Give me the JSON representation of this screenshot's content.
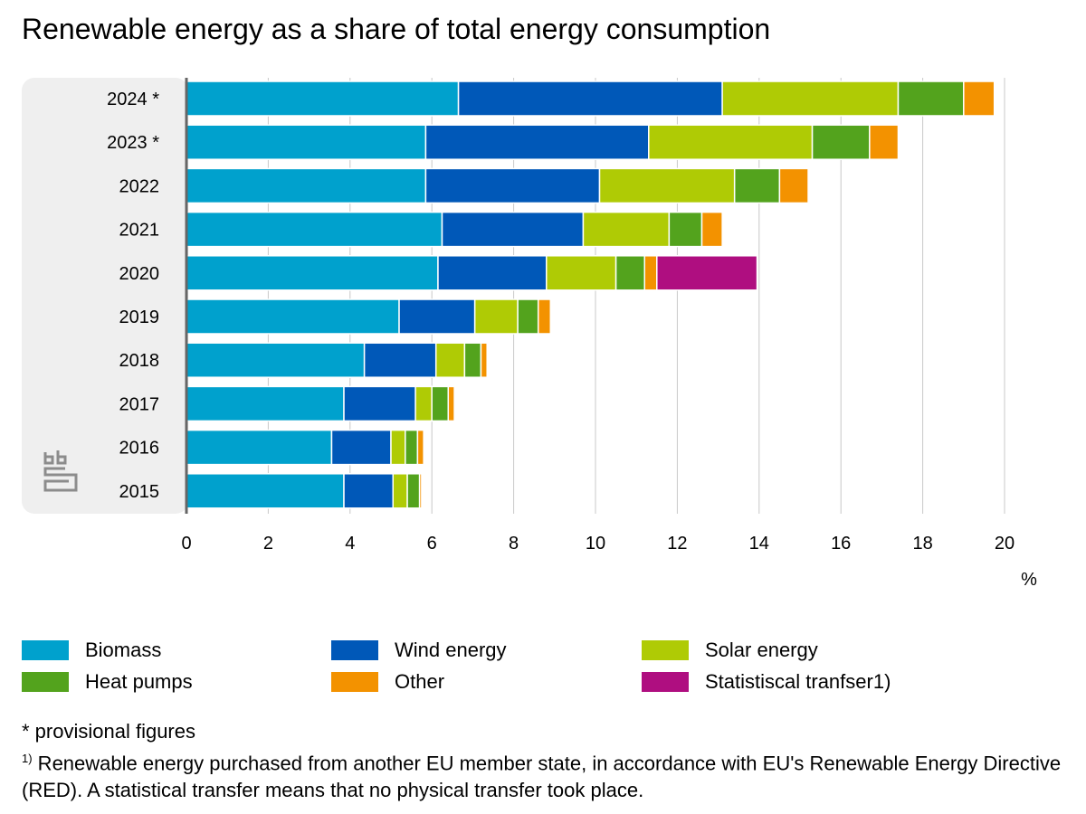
{
  "chart_data": {
    "type": "bar",
    "orientation": "horizontal",
    "stacked": true,
    "title": "Renewable energy as a share of total energy consumption",
    "xlabel": "%",
    "xlim": [
      0,
      20
    ],
    "xticks": [
      "0",
      "2",
      "4",
      "6",
      "8",
      "10",
      "12",
      "14",
      "16",
      "18",
      "20"
    ],
    "grid": true,
    "legend_position": "bottom",
    "categories": [
      "2024 *",
      "2023 *",
      "2022",
      "2021",
      "2020",
      "2019",
      "2018",
      "2017",
      "2016",
      "2015"
    ],
    "series": [
      {
        "name": "Biomass",
        "color": "#00a1cd",
        "values": [
          6.65,
          5.85,
          5.85,
          6.25,
          6.15,
          5.2,
          4.35,
          3.85,
          3.55,
          3.85
        ]
      },
      {
        "name": "Wind energy",
        "color": "#0058b8",
        "values": [
          6.45,
          5.45,
          4.25,
          3.45,
          2.65,
          1.85,
          1.75,
          1.75,
          1.45,
          1.2
        ]
      },
      {
        "name": "Solar energy",
        "color": "#afcb05",
        "values": [
          4.3,
          4.0,
          3.3,
          2.1,
          1.7,
          1.05,
          0.7,
          0.4,
          0.35,
          0.35
        ]
      },
      {
        "name": "Heat pumps",
        "color": "#53a31d",
        "values": [
          1.6,
          1.4,
          1.1,
          0.8,
          0.7,
          0.5,
          0.4,
          0.4,
          0.3,
          0.3
        ]
      },
      {
        "name": "Other",
        "color": "#f39200",
        "values": [
          0.75,
          0.7,
          0.7,
          0.5,
          0.3,
          0.3,
          0.15,
          0.15,
          0.15,
          0.05
        ]
      },
      {
        "name": "Statistiscal tranfser1)",
        "color": "#af0e80",
        "values": [
          0,
          0,
          0,
          0,
          2.45,
          0,
          0,
          0,
          0,
          0
        ]
      }
    ]
  },
  "notes": {
    "provisional": "* provisional figures",
    "footnote_mark": "1)",
    "footnote_text": " Renewable energy purchased from another EU member state, in accordance with EU's Renewable Energy Directive (RED). A statistical transfer means that no physical transfer took place."
  },
  "logo_text": "cbs"
}
